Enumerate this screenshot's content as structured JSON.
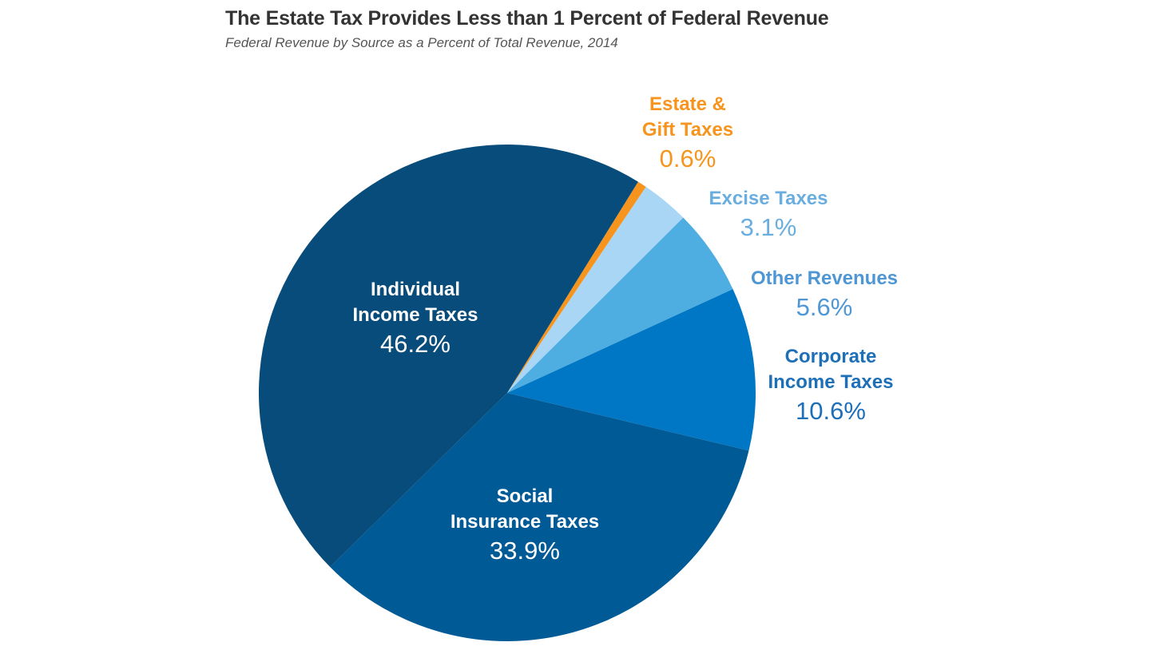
{
  "title": "The Estate Tax Provides Less than 1 Percent of Federal Revenue",
  "subtitle": "Federal Revenue by Source as a Percent of Total Revenue, 2014",
  "chart_data": {
    "type": "pie",
    "title": "The Estate Tax Provides Less than 1 Percent of Federal Revenue",
    "subtitle": "Federal Revenue by Source as a Percent of Total Revenue, 2014",
    "unit": "%",
    "slices": [
      {
        "label_line1": "Estate &",
        "label_line2": "Gift Taxes",
        "value": 0.6,
        "pct_text": "0.6%",
        "color": "#f7941d",
        "label_color": "#f7941d"
      },
      {
        "label_line1": "Excise Taxes",
        "label_line2": "",
        "value": 3.1,
        "pct_text": "3.1%",
        "color": "#a9d6f5",
        "label_color": "#6aaee0"
      },
      {
        "label_line1": "Other Revenues",
        "label_line2": "",
        "value": 5.6,
        "pct_text": "5.6%",
        "color": "#4eaee2",
        "label_color": "#4f97d4"
      },
      {
        "label_line1": "Corporate",
        "label_line2": "Income Taxes",
        "value": 10.6,
        "pct_text": "10.6%",
        "color": "#0077c4",
        "label_color": "#1d6fb8"
      },
      {
        "label_line1": "Social",
        "label_line2": "Insurance Taxes",
        "value": 33.9,
        "pct_text": "33.9%",
        "color": "#005a96",
        "label_color": "#ffffff"
      },
      {
        "label_line1": "Individual",
        "label_line2": "Income Taxes",
        "value": 46.2,
        "pct_text": "46.2%",
        "color": "#074c7a",
        "label_color": "#ffffff"
      }
    ]
  }
}
